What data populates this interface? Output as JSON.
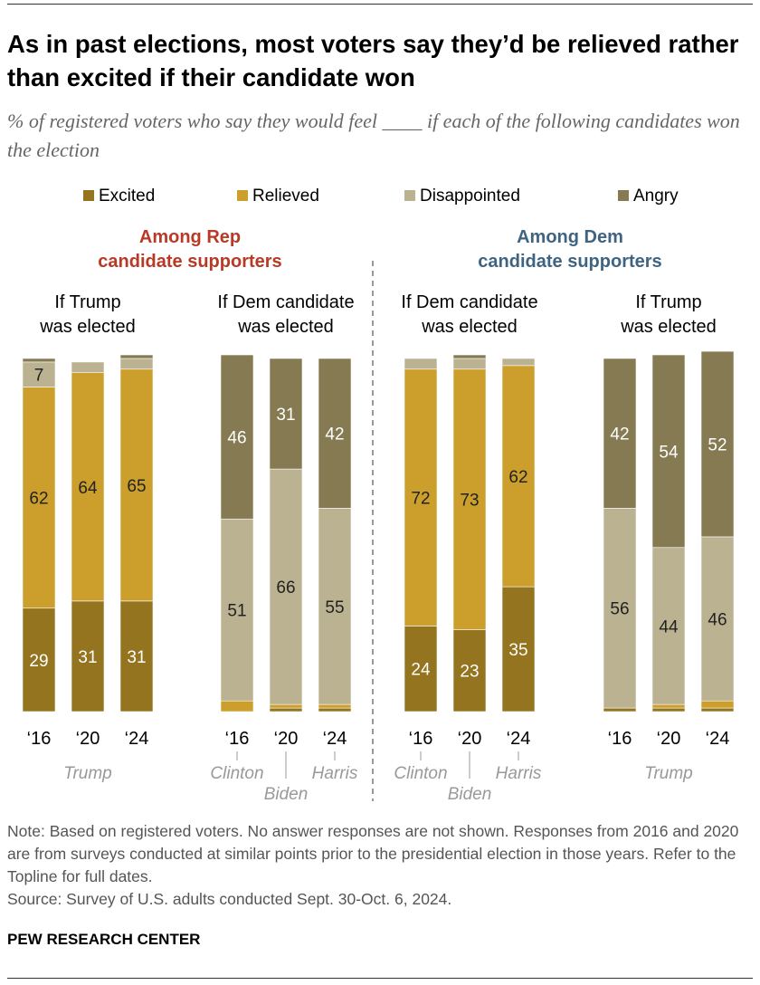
{
  "title": "As in past elections, most voters say they’d be relieved rather than excited if their candidate won",
  "subtitle": "% of registered voters who say they would feel ____ if each of the following candidates won the election",
  "note": "Note: Based on registered voters. No answer responses are not shown. Responses from 2016 and 2020 are from surveys conducted at similar points prior to the presidential election in those years. Refer to the Topline for full dates.",
  "source": "Source: Survey of U.S. adults conducted Sept. 30-Oct. 6, 2024.",
  "brand": "PEW RESEARCH CENTER",
  "chart_data": {
    "type": "bar",
    "stacked": true,
    "ylim": [
      0,
      100
    ],
    "legend": {
      "placement": "top",
      "entries": [
        "Excited",
        "Relieved",
        "Disappointed",
        "Angry"
      ]
    },
    "colors": {
      "Excited": "#94741f",
      "Relieved": "#cc9e2c",
      "Disappointed": "#bbb291",
      "Angry": "#857a51",
      "rep_header": "#b83a26",
      "dem_header": "#3f6482"
    },
    "panels": [
      {
        "header": [
          "Among Rep",
          "candidate supporters"
        ],
        "header_color": "rep",
        "groups": [
          {
            "title": [
              "If Trump",
              "was elected"
            ],
            "candidate_label": "Trump",
            "bars": [
              {
                "year": "‘16",
                "Excited": 29,
                "Relieved": 62,
                "Disappointed": 7,
                "Angry": 1
              },
              {
                "year": "‘20",
                "Excited": 31,
                "Relieved": 64,
                "Disappointed": 3,
                "Angry": 0
              },
              {
                "year": "‘24",
                "Excited": 31,
                "Relieved": 65,
                "Disappointed": 3,
                "Angry": 1
              }
            ]
          },
          {
            "title": [
              "If Dem candidate",
              "was elected"
            ],
            "candidate_labels": [
              "Clinton",
              "Biden",
              "Harris"
            ],
            "bars": [
              {
                "year": "‘16",
                "Excited": 0,
                "Relieved": 3,
                "Disappointed": 51,
                "Angry": 46
              },
              {
                "year": "‘20",
                "Excited": 1,
                "Relieved": 1,
                "Disappointed": 66,
                "Angry": 31
              },
              {
                "year": "‘24",
                "Excited": 1,
                "Relieved": 1,
                "Disappointed": 55,
                "Angry": 42
              }
            ]
          }
        ]
      },
      {
        "header": [
          "Among Dem",
          "candidate supporters"
        ],
        "header_color": "dem",
        "groups": [
          {
            "title": [
              "If Dem candidate",
              "was elected"
            ],
            "candidate_labels": [
              "Clinton",
              "Biden",
              "Harris"
            ],
            "bars": [
              {
                "year": "‘16",
                "Excited": 24,
                "Relieved": 72,
                "Disappointed": 3,
                "Angry": 0
              },
              {
                "year": "‘20",
                "Excited": 23,
                "Relieved": 73,
                "Disappointed": 3,
                "Angry": 1
              },
              {
                "year": "‘24",
                "Excited": 35,
                "Relieved": 62,
                "Disappointed": 2,
                "Angry": 0
              }
            ]
          },
          {
            "title": [
              "If Trump",
              "was elected"
            ],
            "candidate_label": "Trump",
            "bars": [
              {
                "year": "‘16",
                "Excited": 1,
                "Relieved": 0,
                "Disappointed": 56,
                "Angry": 42
              },
              {
                "year": "‘20",
                "Excited": 1,
                "Relieved": 1,
                "Disappointed": 44,
                "Angry": 54
              },
              {
                "year": "‘24",
                "Excited": 1,
                "Relieved": 2,
                "Disappointed": 46,
                "Angry": 52
              }
            ]
          }
        ]
      }
    ]
  }
}
